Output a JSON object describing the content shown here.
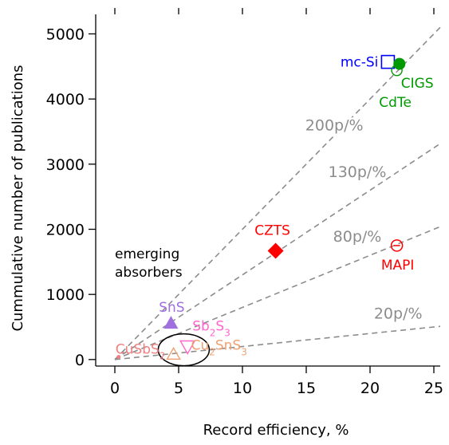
{
  "chart_data": {
    "type": "scatter",
    "xlabel": "Record efficiency, %",
    "ylabel": "Cummulative number of publications",
    "xlim": [
      -1.5,
      25.5
    ],
    "ylim": [
      -100,
      5300
    ],
    "x_ticks": [
      0,
      5,
      10,
      15,
      20,
      25
    ],
    "y_ticks": [
      0,
      1000,
      2000,
      3000,
      4000,
      5000
    ],
    "grid": false,
    "rate_lines": [
      {
        "label": "200p/%",
        "slope": 200,
        "label_x": 17.2,
        "label_y": 3520
      },
      {
        "label": "130p/%",
        "slope": 130,
        "label_x": 19.0,
        "label_y": 2800
      },
      {
        "label": "80p/%",
        "slope": 80,
        "label_x": 19.0,
        "label_y": 1810
      },
      {
        "label": "20p/%",
        "slope": 20,
        "label_x": 22.2,
        "label_y": 630
      }
    ],
    "group_label": [
      "emerging",
      "absorbers"
    ],
    "points": [
      {
        "label": "mc-Si",
        "x": 21.4,
        "y": 4570,
        "marker": "square-open",
        "color": "#0000ff"
      },
      {
        "label": "CIGS",
        "x": 22.3,
        "y": 4540,
        "marker": "circle-filled",
        "color": "#009900"
      },
      {
        "label": "CdTe",
        "x": 22.1,
        "y": 4440,
        "marker": "circle-open",
        "color": "#009900"
      },
      {
        "label": "CZTS",
        "x": 12.6,
        "y": 1670,
        "marker": "diamond-filled",
        "color": "#ff0000"
      },
      {
        "label": "MAPI",
        "x": 22.1,
        "y": 1750,
        "marker": "circle-open-dash",
        "color": "#ff0000"
      },
      {
        "label": "SnS",
        "x": 4.4,
        "y": 560,
        "marker": "triangle-filled",
        "color": "#a070e0"
      },
      {
        "label": "Sb2S3",
        "x": 5.7,
        "y": 200,
        "marker": "triangle-down-open",
        "color": "#ff66cc"
      },
      {
        "label": "Cu2SnS3",
        "x": 4.6,
        "y": 80,
        "marker": "triangle-open",
        "color": "#f0a070"
      },
      {
        "label": "CuSbS2",
        "x": 0.3,
        "y": 40,
        "marker": "small",
        "color": "#f08080"
      }
    ]
  }
}
